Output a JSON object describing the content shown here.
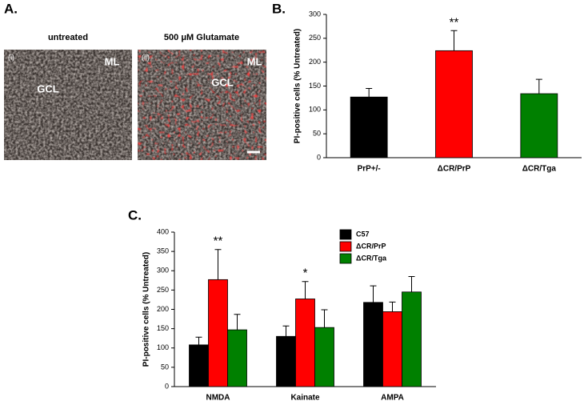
{
  "panel_a": {
    "label": "A.",
    "images": [
      {
        "title": "untreated",
        "tag": "(i)",
        "labels": [
          "ML",
          "GCL"
        ]
      },
      {
        "title": "500 μM Glutamate",
        "tag": "(ii)",
        "labels": [
          "ML",
          "GCL"
        ]
      }
    ]
  },
  "chart_data": [
    {
      "type": "bar",
      "label": "B.",
      "y_label": "PI-positive cells (% Untreated)",
      "categories": [
        "PrP+/-",
        "ΔCR/PrP",
        "ΔCR/Tga"
      ],
      "values": [
        127,
        224,
        134
      ],
      "errors": [
        18,
        42,
        30
      ],
      "colors": [
        "#000000",
        "#ff0000",
        "#008000"
      ],
      "significance": [
        null,
        "**",
        null
      ],
      "ylim": [
        0,
        300
      ],
      "yticks": [
        0,
        50,
        100,
        150,
        200,
        250,
        300
      ]
    },
    {
      "type": "grouped_bar",
      "label": "C.",
      "y_label": "PI-positive cells (% Untreated)",
      "categories": [
        "NMDA",
        "Kainate",
        "AMPA"
      ],
      "series": [
        {
          "name": "C57",
          "color": "#000000",
          "values": [
            108,
            130,
            218
          ],
          "errors": [
            20,
            27,
            43
          ]
        },
        {
          "name": "ΔCR/PrP",
          "color": "#ff0000",
          "values": [
            277,
            227,
            194
          ],
          "errors": [
            78,
            45,
            25
          ],
          "significance": [
            "**",
            "*",
            null
          ]
        },
        {
          "name": "ΔCR/Tga",
          "color": "#008000",
          "values": [
            147,
            153,
            245
          ],
          "errors": [
            40,
            46,
            40
          ]
        }
      ],
      "legend": "top-right",
      "ylim": [
        0,
        400
      ],
      "yticks": [
        0,
        50,
        100,
        150,
        200,
        250,
        300,
        350,
        400
      ]
    }
  ]
}
